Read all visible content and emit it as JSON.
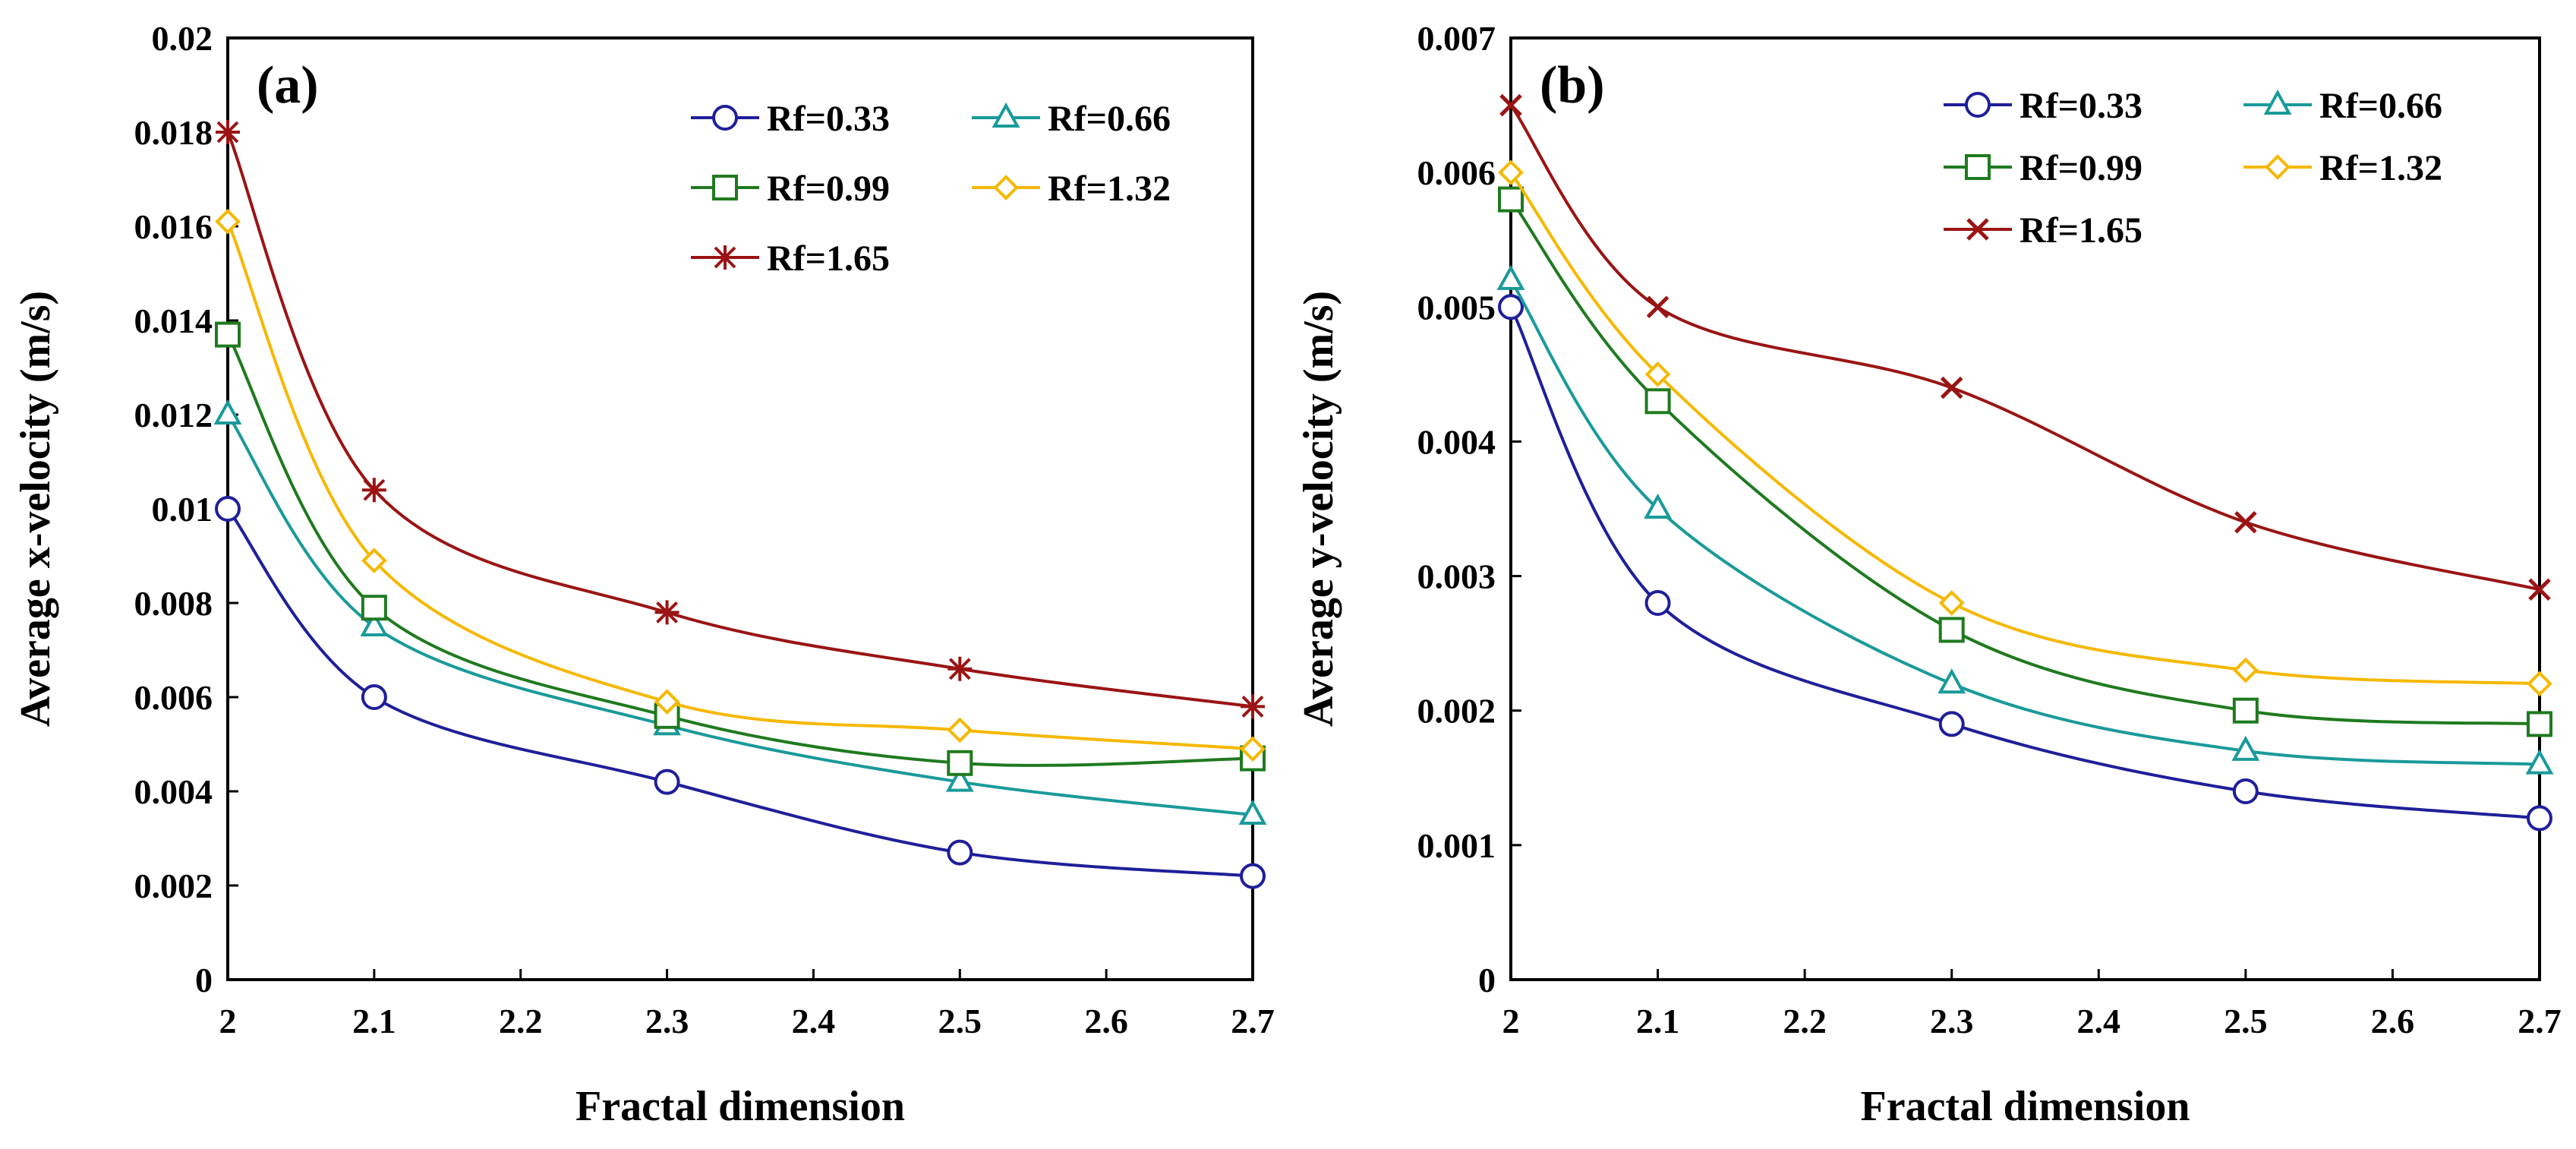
{
  "chart_data": [
    {
      "type": "line",
      "panel_label": "(a)",
      "xlabel": "Fractal dimension",
      "ylabel": "Average  x-velocity (m/s)",
      "xlim": [
        2,
        2.7
      ],
      "ylim": [
        0,
        0.02
      ],
      "xticks": [
        "2",
        "2.1",
        "2.2",
        "2.3",
        "2.4",
        "2.5",
        "2.6",
        "2.7"
      ],
      "yticks": [
        "0",
        "0.002",
        "0.004",
        "0.006",
        "0.008",
        "0.01",
        "0.012",
        "0.014",
        "0.016",
        "0.018",
        "0.02"
      ],
      "x": [
        2,
        2.1,
        2.3,
        2.5,
        2.7
      ],
      "legend_position": "top-right",
      "series": [
        {
          "name": "Rf=0.33",
          "color": "#1f1f9a",
          "marker": "circle",
          "values": [
            0.01,
            0.006,
            0.0042,
            0.0027,
            0.0022
          ]
        },
        {
          "name": "Rf=0.66",
          "color": "#1a9a9a",
          "marker": "triangle",
          "values": [
            0.012,
            0.0075,
            0.0054,
            0.0042,
            0.0035
          ]
        },
        {
          "name": "Rf=0.99",
          "color": "#1f7a1f",
          "marker": "square",
          "values": [
            0.0137,
            0.0079,
            0.0056,
            0.0046,
            0.0047
          ]
        },
        {
          "name": "Rf=1.32",
          "color": "#f5b800",
          "marker": "diamond",
          "values": [
            0.0161,
            0.0089,
            0.0059,
            0.0053,
            0.0049
          ]
        },
        {
          "name": "Rf=1.65",
          "color": "#9a1414",
          "marker": "star",
          "values": [
            0.018,
            0.0104,
            0.0078,
            0.0066,
            0.0058
          ]
        }
      ]
    },
    {
      "type": "line",
      "panel_label": "(b)",
      "xlabel": "Fractal dimension",
      "ylabel": "Average  y-velocity (m/s)",
      "xlim": [
        2,
        2.7
      ],
      "ylim": [
        0,
        0.007
      ],
      "xticks": [
        "2",
        "2.1",
        "2.2",
        "2.3",
        "2.4",
        "2.5",
        "2.6",
        "2.7"
      ],
      "yticks": [
        "0",
        "0.001",
        "0.002",
        "0.003",
        "0.004",
        "0.005",
        "0.006",
        "0.007"
      ],
      "x": [
        2,
        2.1,
        2.3,
        2.5,
        2.7
      ],
      "legend_position": "top-right",
      "series": [
        {
          "name": "Rf=0.33",
          "color": "#1f1f9a",
          "marker": "circle",
          "values": [
            0.005,
            0.0028,
            0.0019,
            0.0014,
            0.0012
          ]
        },
        {
          "name": "Rf=0.66",
          "color": "#1a9a9a",
          "marker": "triangle",
          "values": [
            0.0052,
            0.0035,
            0.0022,
            0.0017,
            0.0016
          ]
        },
        {
          "name": "Rf=0.99",
          "color": "#1f7a1f",
          "marker": "square",
          "values": [
            0.0058,
            0.0043,
            0.0026,
            0.002,
            0.0019
          ]
        },
        {
          "name": "Rf=1.32",
          "color": "#f5b800",
          "marker": "diamond",
          "values": [
            0.006,
            0.0045,
            0.0028,
            0.0023,
            0.0022
          ]
        },
        {
          "name": "Rf=1.65",
          "color": "#9a1414",
          "marker": "x",
          "values": [
            0.0065,
            0.005,
            0.0044,
            0.0034,
            0.0029
          ]
        }
      ]
    }
  ]
}
